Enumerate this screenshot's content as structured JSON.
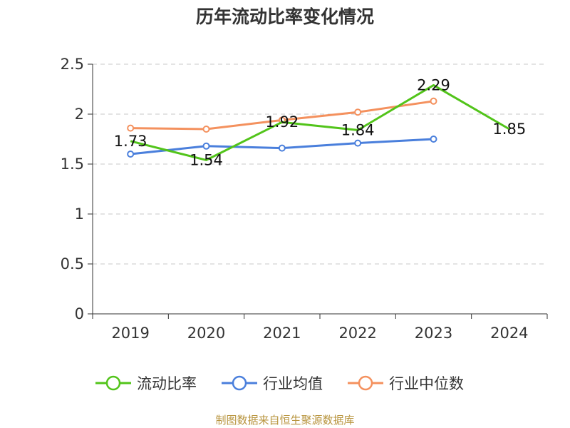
{
  "chart_data": {
    "type": "line",
    "title": "历年流动比率变化情况",
    "categories": [
      "2019",
      "2020",
      "2021",
      "2022",
      "2023",
      "2024"
    ],
    "ylim": [
      0,
      2.5
    ],
    "yticks": [
      "0",
      "0.5",
      "1",
      "1.5",
      "2",
      "2.5"
    ],
    "grid": true,
    "legend_position": "bottom",
    "series": [
      {
        "name": "流动比率",
        "color": "#52c41a",
        "values": [
          1.73,
          1.54,
          1.92,
          1.84,
          2.29,
          1.85
        ],
        "data_labels": [
          "1.73",
          "1.54",
          "1.92",
          "1.84",
          "2.29",
          "1.85"
        ]
      },
      {
        "name": "行业均值",
        "color": "#4a7fdc",
        "values": [
          1.6,
          1.68,
          1.66,
          1.71,
          1.75,
          null
        ]
      },
      {
        "name": "行业中位数",
        "color": "#f4915e",
        "values": [
          1.86,
          1.85,
          1.94,
          2.02,
          2.13,
          null
        ]
      }
    ]
  },
  "source_note": "制图数据来自恒生聚源数据库"
}
